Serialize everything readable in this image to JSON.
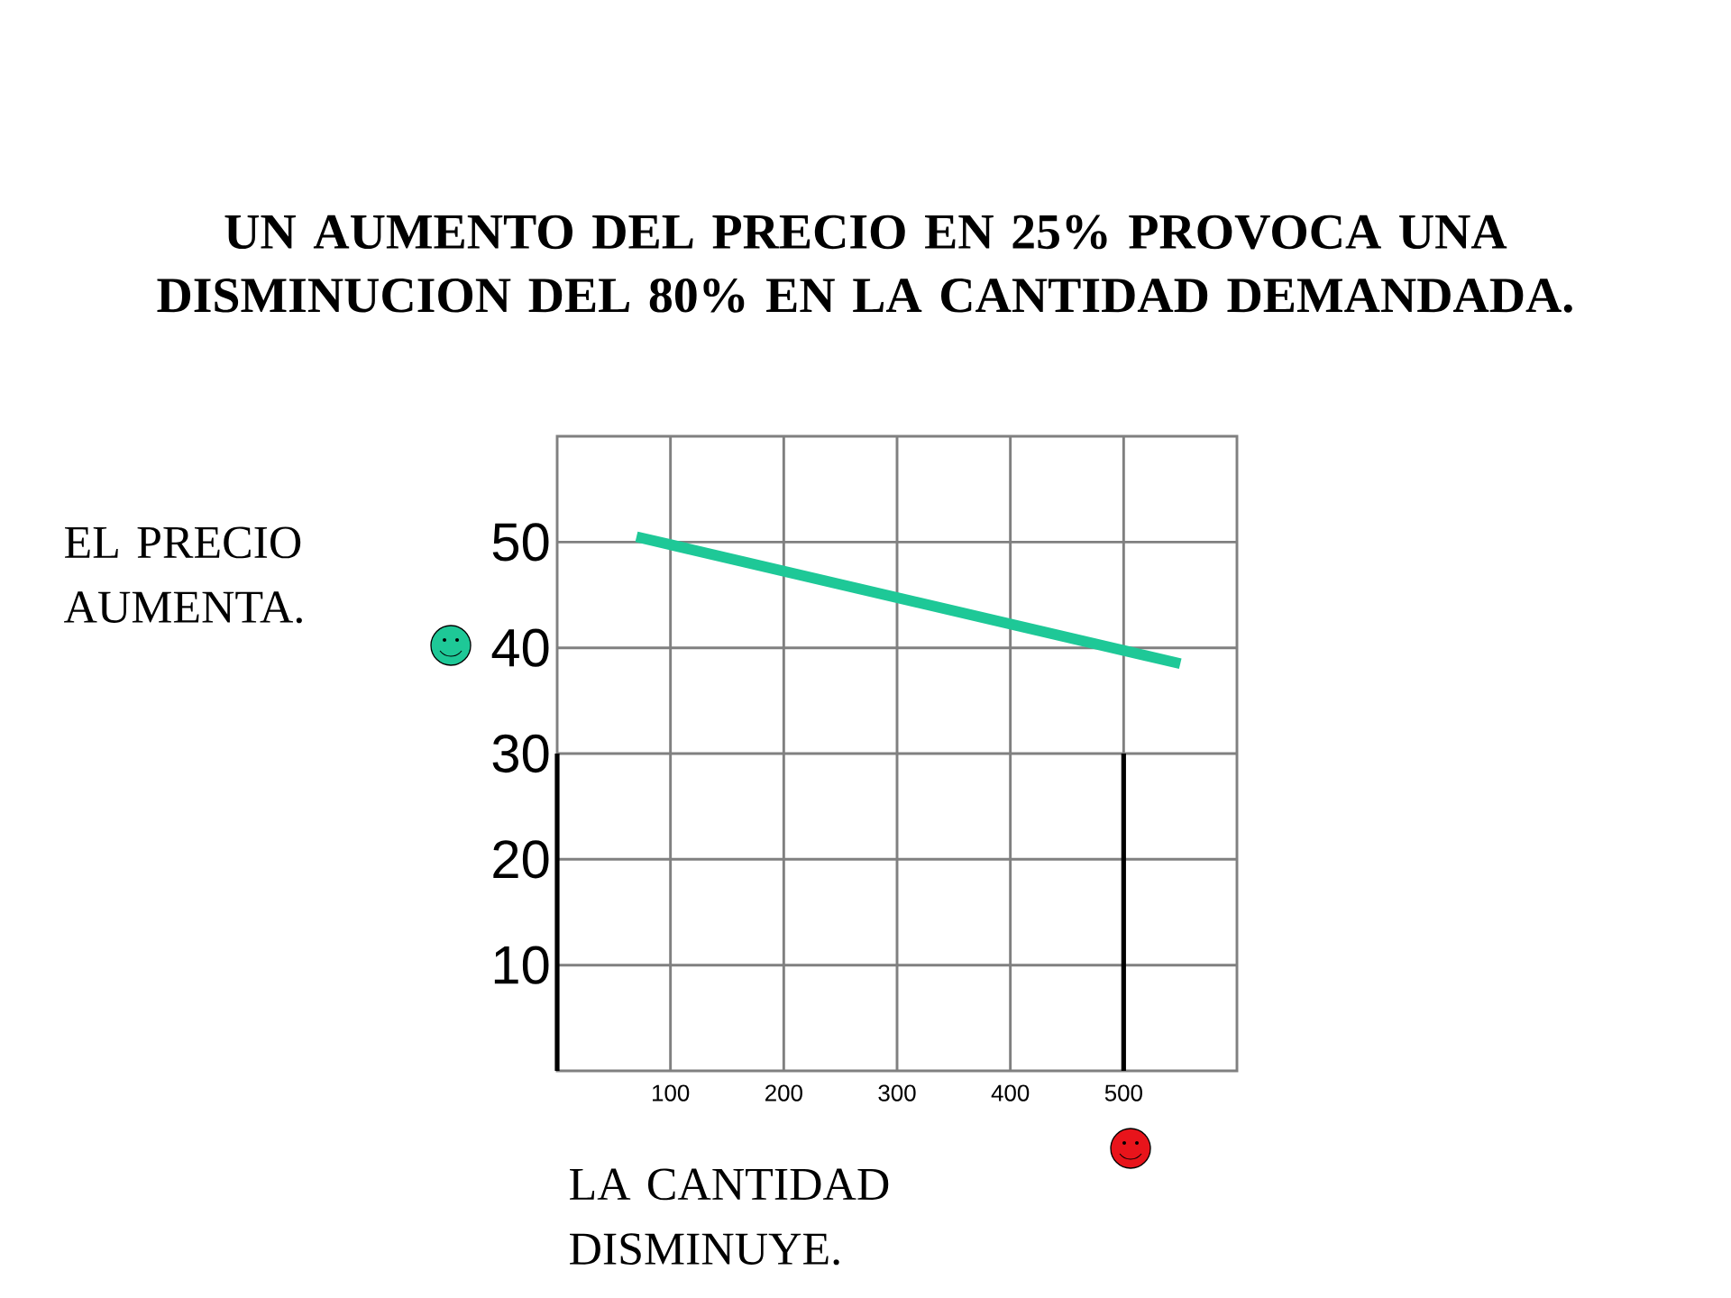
{
  "chart_data": {
    "type": "line",
    "title": "UN AUMENTO DEL PRECIO EN 25% PROVOCA UNA DISMINUCION DEL 80% EN LA CANTIDAD DEMANDADA.",
    "xlabel": "LA CANTIDAD DISMINUYE.",
    "ylabel": "EL PRECIO AUMENTA.",
    "series": [
      {
        "color": "#1ec897",
        "x": [
          70,
          550
        ],
        "values": [
          50.5,
          38.5
        ]
      },
      {
        "type": "bar",
        "color": "#000000",
        "x": [
          0,
          500
        ],
        "values": [
          30,
          30
        ]
      }
    ],
    "xlim": [
      0,
      600
    ],
    "ylim": [
      0,
      60
    ],
    "xticks": [
      100,
      200,
      300,
      400,
      500
    ],
    "yticks": [
      10,
      20,
      30,
      40,
      50
    ],
    "grid": true,
    "marker": "none",
    "line_style": "solid"
  }
}
